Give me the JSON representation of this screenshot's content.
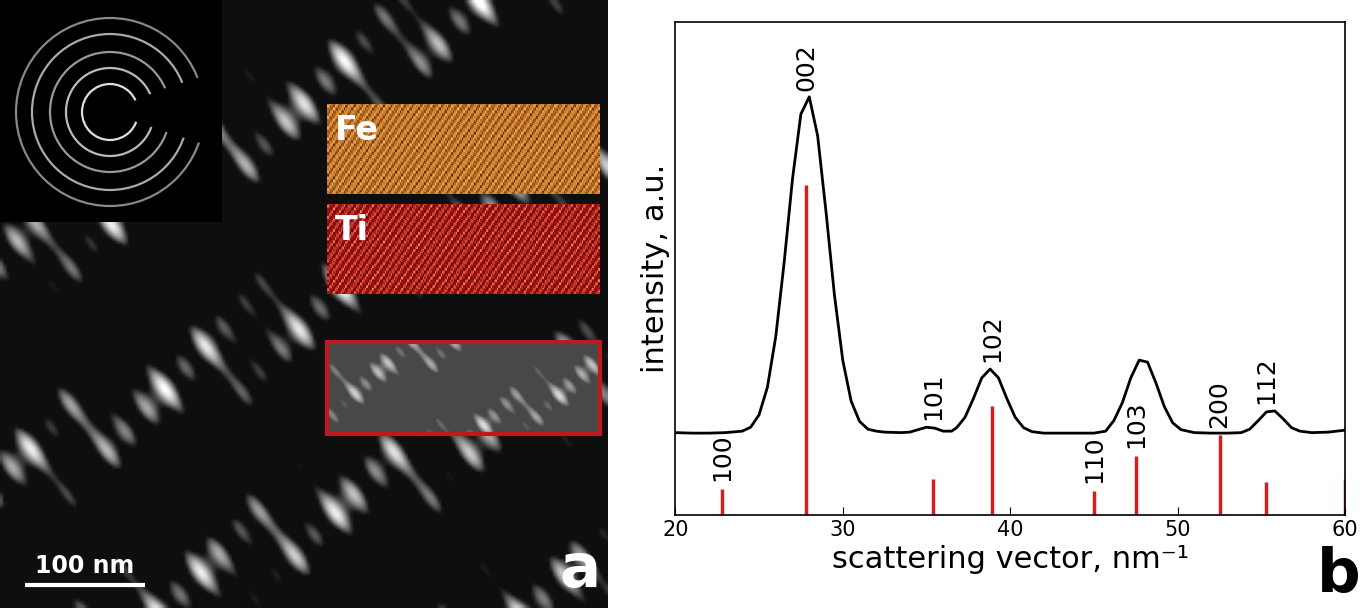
{
  "image_panel": {
    "panel_label": "a",
    "scale_bar": "100 nm",
    "element_maps": [
      {
        "name": "Fe",
        "color": "#c87820"
      },
      {
        "name": "Ti",
        "color": "#b01010"
      }
    ]
  },
  "chart_data": {
    "type": "line",
    "panel_label": "b",
    "x_label": "scattering vector, nm⁻¹",
    "y_label": "intensity, a.u.",
    "x": [
      20,
      21,
      22,
      23,
      24,
      24.5,
      25,
      25.5,
      26,
      26.5,
      27,
      27.5,
      28,
      28.5,
      29,
      29.5,
      30,
      30.5,
      31,
      31.5,
      32,
      32.5,
      33.5,
      34,
      34.5,
      35,
      35.5,
      36,
      36.5,
      36.8,
      37.3,
      37.8,
      38.3,
      38.8,
      39.3,
      39.8,
      40.3,
      40.8,
      41.3,
      42,
      43,
      44,
      45,
      45.7,
      46.2,
      46.7,
      47.2,
      47.7,
      48.2,
      48.7,
      49.2,
      49.7,
      50.2,
      51,
      52,
      53,
      53.8,
      54.3,
      54.8,
      55.3,
      55.8,
      56.3,
      56.8,
      57.3,
      58,
      59,
      60
    ],
    "values": [
      16.7,
      16.6,
      16.6,
      16.7,
      17.0,
      17.8,
      20.3,
      25.9,
      36.2,
      51.2,
      68.2,
      81.3,
      84.8,
      76.9,
      61.5,
      44.7,
      31.4,
      23.1,
      19.0,
      17.4,
      17.0,
      16.8,
      16.7,
      16.8,
      17.3,
      17.8,
      17.6,
      17.0,
      17.0,
      17.7,
      19.8,
      23.6,
      27.8,
      29.6,
      27.8,
      23.6,
      19.8,
      17.7,
      16.9,
      16.6,
      16.6,
      16.6,
      16.6,
      17.0,
      19.2,
      22.8,
      27.8,
      31.4,
      31.0,
      26.8,
      22.0,
      18.7,
      17.3,
      16.7,
      16.6,
      16.6,
      16.7,
      17.4,
      19.1,
      20.9,
      21.1,
      19.5,
      17.7,
      17.0,
      16.7,
      16.8,
      17.2
    ],
    "color": "#000000",
    "reference_lines": {
      "x": [
        22.8,
        27.8,
        35.4,
        38.9,
        45.0,
        47.5,
        52.5,
        55.3,
        60.0
      ],
      "values": [
        5.3,
        67,
        7.3,
        22,
        4.9,
        12,
        16.2,
        6.7,
        7.3
      ],
      "labels": [
        "100",
        "002",
        "101",
        "102",
        "110",
        "103",
        "200",
        "112",
        null
      ],
      "color": "#cc2222"
    },
    "xlim": [
      20,
      60
    ],
    "xticks": [
      20,
      30,
      40,
      50,
      60
    ],
    "ylim": [
      0,
      100
    ],
    "yticks": [],
    "tick_labels": "x"
  }
}
